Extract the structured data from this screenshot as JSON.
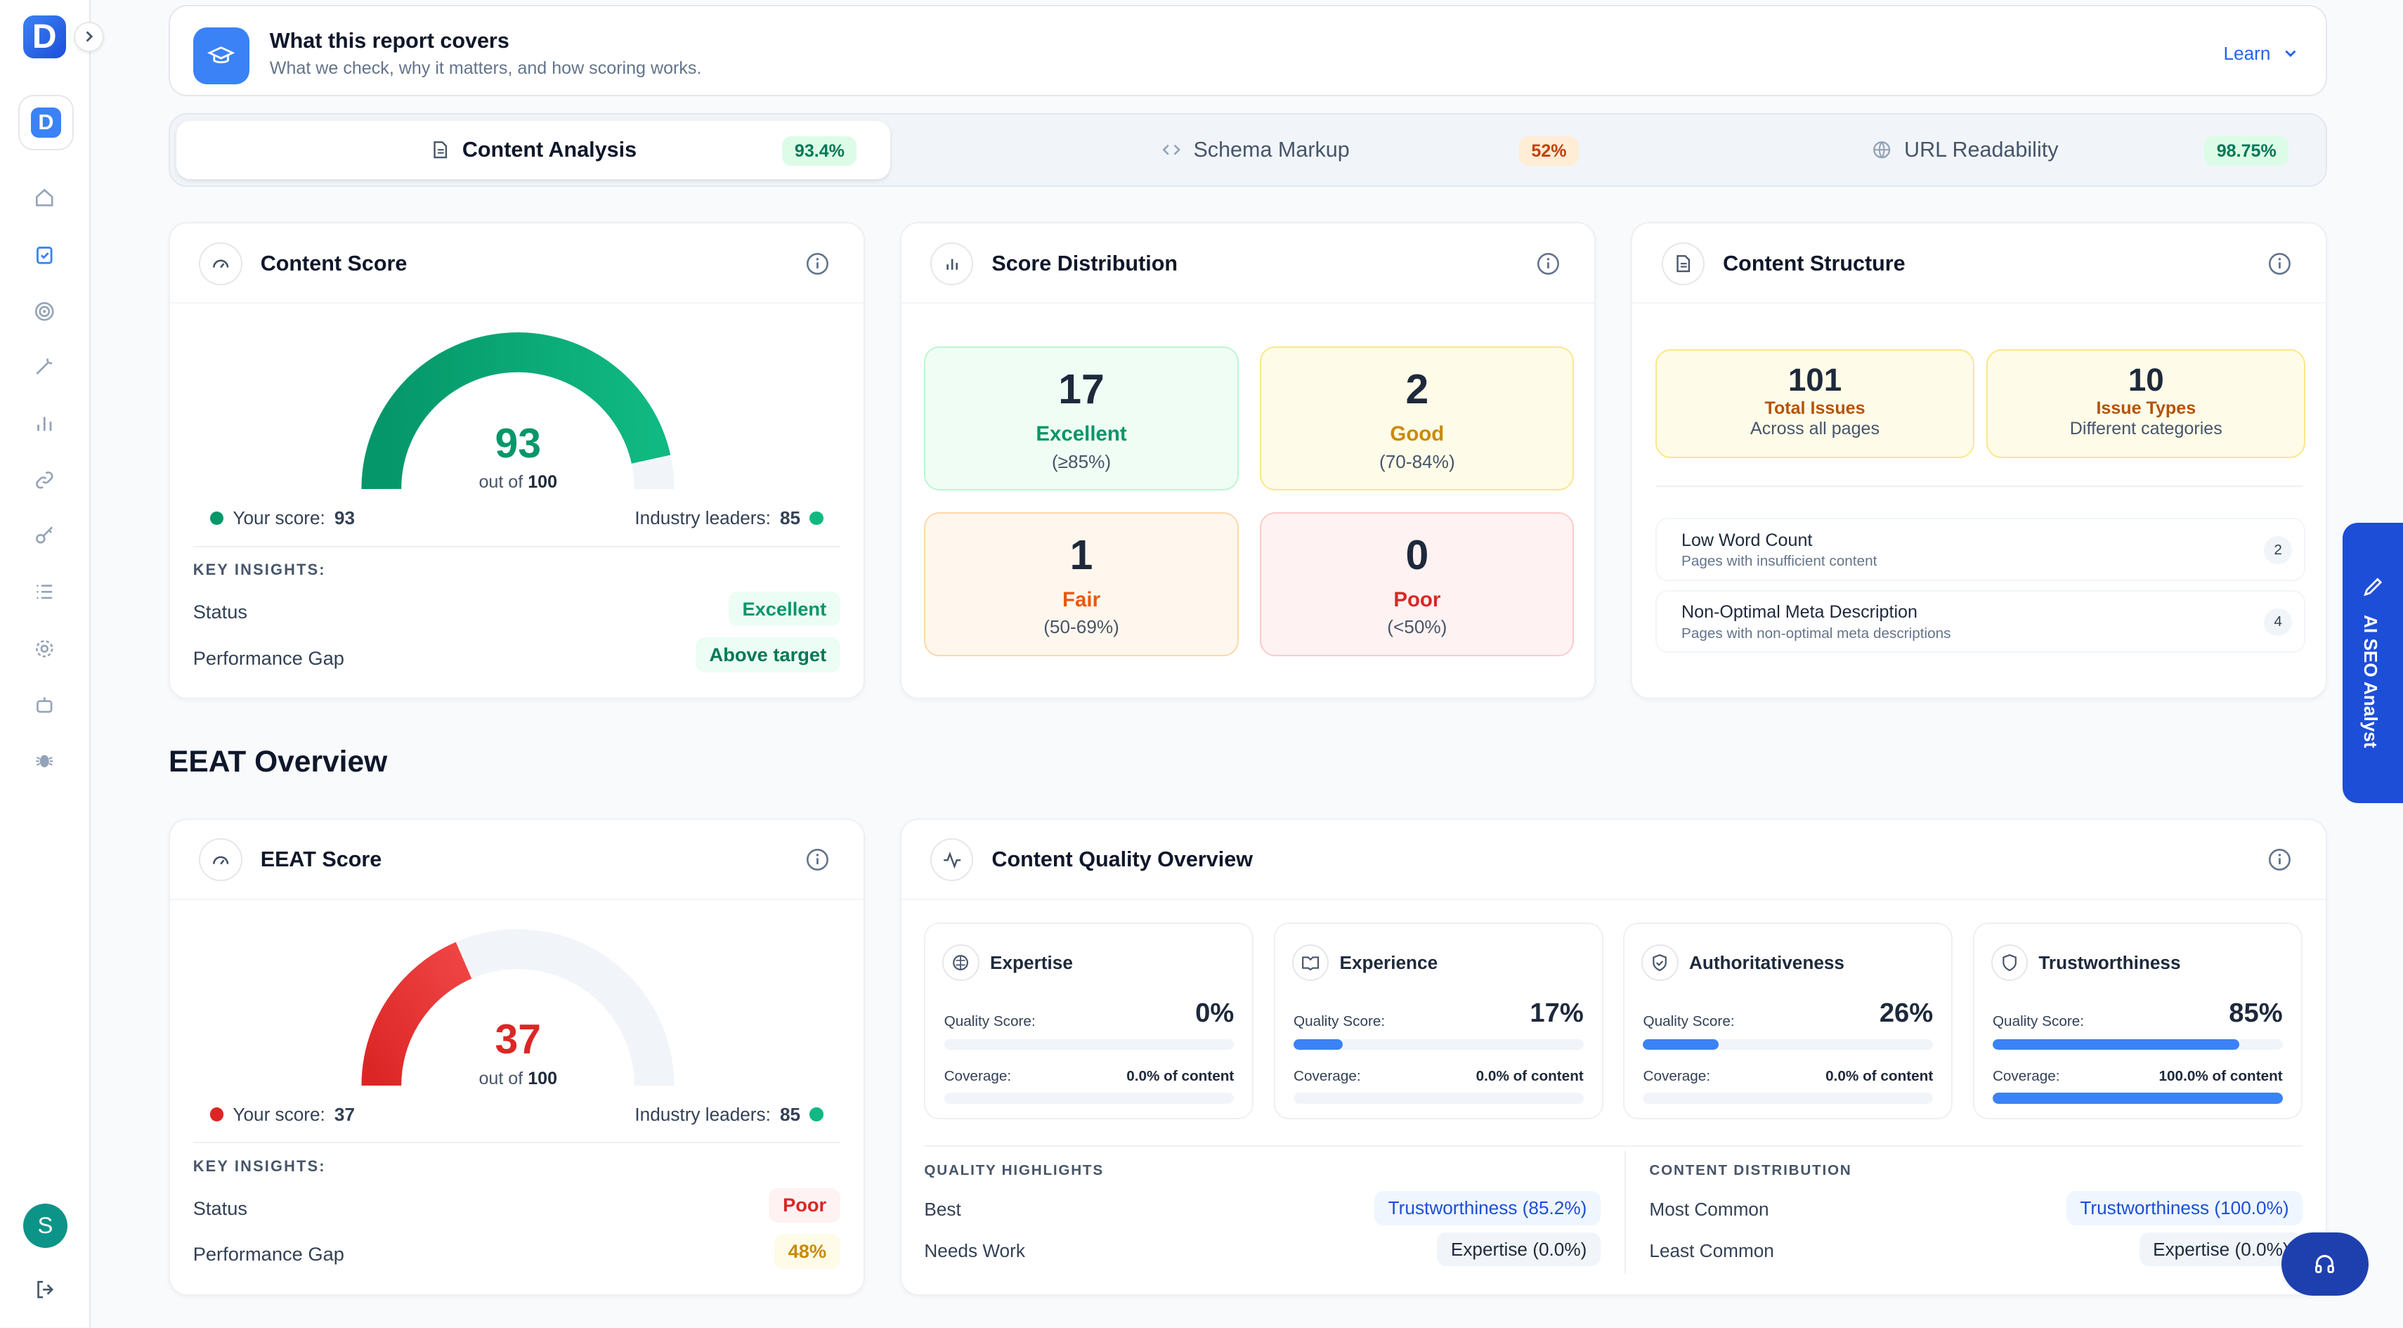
{
  "sidebar": {
    "logo": "D",
    "workspace": "D",
    "avatar": "S"
  },
  "banner": {
    "title": "What this report covers",
    "subtitle": "What we check, why it matters, and how scoring works.",
    "learn": "Learn"
  },
  "tabs": [
    {
      "label": "Content Analysis",
      "pct": "93.4%"
    },
    {
      "label": "Schema Markup",
      "pct": "52%"
    },
    {
      "label": "URL Readability",
      "pct": "98.75%"
    }
  ],
  "content_score": {
    "title": "Content Score",
    "score": "93",
    "score_value": 93,
    "out_of": "out of",
    "max": "100",
    "your_label": "Your score:",
    "your": "93",
    "industry_label": "Industry leaders:",
    "industry": "85",
    "insights": "KEY INSIGHTS:",
    "status_label": "Status",
    "status": "Excellent",
    "gap_label": "Performance Gap",
    "gap": "Above target"
  },
  "distribution": {
    "title": "Score Distribution",
    "items": [
      {
        "n": "17",
        "label": "Excellent",
        "range": "(≥85%)"
      },
      {
        "n": "2",
        "label": "Good",
        "range": "(70-84%)"
      },
      {
        "n": "1",
        "label": "Fair",
        "range": "(50-69%)"
      },
      {
        "n": "0",
        "label": "Poor",
        "range": "(<50%)"
      }
    ]
  },
  "structure": {
    "title": "Content Structure",
    "stats": [
      {
        "n": "101",
        "label": "Total Issues",
        "sub": "Across all pages"
      },
      {
        "n": "10",
        "label": "Issue Types",
        "sub": "Different categories"
      }
    ],
    "issues": [
      {
        "t": "Low Word Count",
        "s": "Pages with insufficient content",
        "c": "2"
      },
      {
        "t": "Non-Optimal Meta Description",
        "s": "Pages with non-optimal meta descriptions",
        "c": "4"
      }
    ]
  },
  "eeat_heading": "EEAT Overview",
  "eeat_score": {
    "title": "EEAT Score",
    "score": "37",
    "score_value": 37,
    "out_of": "out of",
    "max": "100",
    "your_label": "Your score:",
    "your": "37",
    "industry_label": "Industry leaders:",
    "industry": "85",
    "insights": "KEY INSIGHTS:",
    "status_label": "Status",
    "status": "Poor",
    "gap_label": "Performance Gap",
    "gap": "48%"
  },
  "quality": {
    "title": "Content Quality Overview",
    "quality_label": "Quality Score:",
    "coverage_label": "Coverage:",
    "cards": [
      {
        "name": "Expertise",
        "score": "0%",
        "score_value": 0,
        "coverage": "0.0% of content",
        "coverage_value": 0
      },
      {
        "name": "Experience",
        "score": "17%",
        "score_value": 17,
        "coverage": "0.0% of content",
        "coverage_value": 0
      },
      {
        "name": "Authoritativeness",
        "score": "26%",
        "score_value": 26,
        "coverage": "0.0% of content",
        "coverage_value": 0
      },
      {
        "name": "Trustworthiness",
        "score": "85%",
        "score_value": 85,
        "coverage": "100.0% of content",
        "coverage_value": 100
      }
    ],
    "highlights": {
      "title": "QUALITY HIGHLIGHTS",
      "best_label": "Best",
      "best": "Trustworthiness (85.2%)",
      "needs_label": "Needs Work",
      "needs": "Expertise (0.0%)"
    },
    "distribution": {
      "title": "CONTENT DISTRIBUTION",
      "most_label": "Most Common",
      "most": "Trustworthiness (100.0%)",
      "least_label": "Least Common",
      "least": "Expertise (0.0%)"
    }
  },
  "ai_tab": "AI SEO Analyst",
  "colors": {
    "accent": "#3b82f6",
    "excellent": "#059669",
    "poor": "#dc2626"
  }
}
